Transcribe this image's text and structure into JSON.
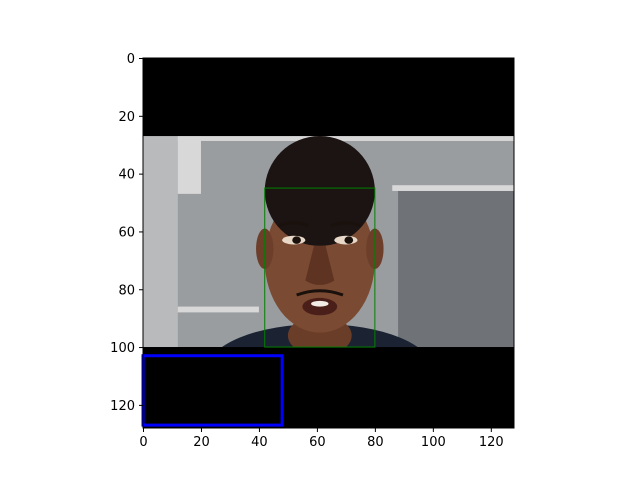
{
  "image": {
    "description_free": true,
    "size": [
      128,
      128
    ],
    "content": "photo-of-face"
  },
  "axes": {
    "x_ticks": [
      "0",
      "20",
      "40",
      "60",
      "80",
      "100",
      "120"
    ],
    "y_ticks": [
      "0",
      "20",
      "40",
      "60",
      "80",
      "100",
      "120"
    ],
    "x_range": [
      0,
      128
    ],
    "y_range": [
      0,
      128
    ]
  },
  "regions": {
    "top_black_band": {
      "y0": 0,
      "y1": 27
    },
    "bottom_black_band": {
      "y0": 100,
      "y1": 128
    }
  },
  "boxes": [
    {
      "label_color": "#008000",
      "x0": 42,
      "y0": 45,
      "x1": 80,
      "y1": 100,
      "name": "face-box"
    },
    {
      "label_color": "#0000ff",
      "x0": 0,
      "y0": 103,
      "x1": 48,
      "y1": 127,
      "name": "blue-box"
    }
  ],
  "colors": {
    "band": "#000000",
    "bg_gray": "#9a9da0",
    "bg_dark": "#6f7377",
    "frame_white": "#d8d8d8",
    "skin": "#7a4a32",
    "hair": "#1b1412",
    "shirt": "#1b2333"
  }
}
